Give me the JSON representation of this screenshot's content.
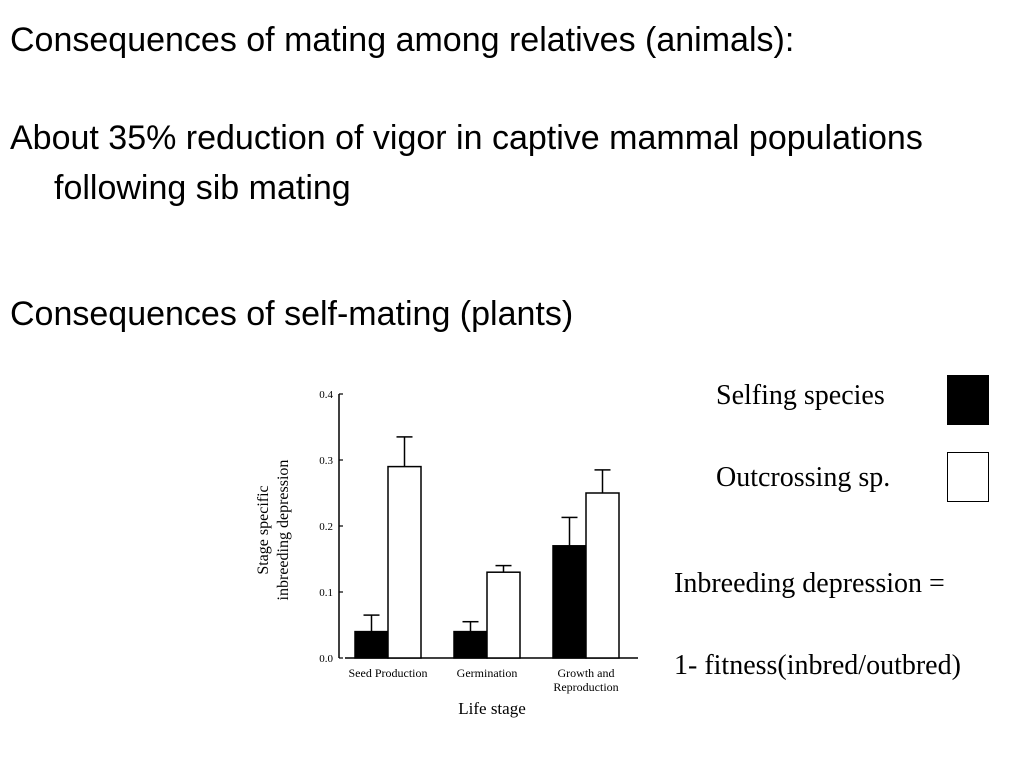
{
  "slide": {
    "heading1": "Consequences of mating among relatives (animals):",
    "bullet1": "About 35% reduction of vigor in captive mammal populations following sib mating",
    "heading2": "Consequences of self-mating (plants)"
  },
  "legend": {
    "selfing_label": "Selfing species",
    "outcrossing_label": "Outcrossing sp."
  },
  "formula": {
    "line1": "Inbreeding depression =",
    "line2": "1- fitness(inbred/outbred)"
  },
  "colors": {
    "selfing": "#000000",
    "outcrossing": "#ffffff"
  },
  "chart_data": {
    "type": "bar",
    "categories": [
      [
        "Seed Production"
      ],
      [
        "Germination"
      ],
      [
        "Growth and",
        "Reproduction"
      ]
    ],
    "series": [
      {
        "name": "Selfing species",
        "values": [
          0.04,
          0.04,
          0.17
        ],
        "errors": [
          0.025,
          0.015,
          0.043
        ]
      },
      {
        "name": "Outcrossing sp.",
        "values": [
          0.29,
          0.13,
          0.25
        ],
        "errors": [
          0.045,
          0.01,
          0.035
        ]
      }
    ],
    "ylabel": [
      "Stage specific",
      "inbreeding depression"
    ],
    "xlabel": "Life stage",
    "ylim": [
      0,
      0.4
    ],
    "yticks": [
      "0.0",
      "0.1",
      "0.2",
      "0.3",
      "0.4"
    ],
    "grid": false
  }
}
